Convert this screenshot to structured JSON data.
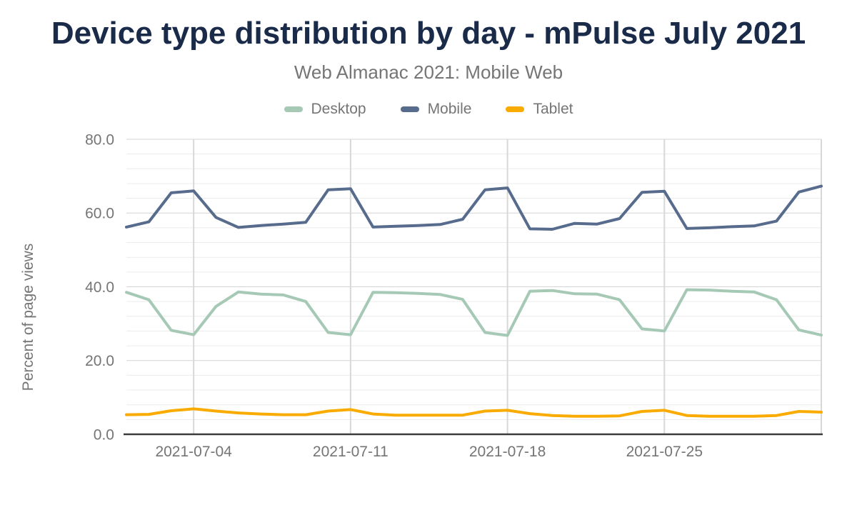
{
  "chart_data": {
    "type": "line",
    "title": "Device type distribution by day - mPulse July 2021",
    "subtitle": "Web Almanac 2021: Mobile Web",
    "ylabel": "Percent of page views",
    "xlabel": "",
    "ylim": [
      0,
      80
    ],
    "y_major_step": 20,
    "y_minor_step": 4,
    "grid": true,
    "legend_position": "top",
    "y_ticks": [
      {
        "value": 80,
        "label": "80.0"
      },
      {
        "value": 60,
        "label": "60.0"
      },
      {
        "value": 40,
        "label": "40.0"
      },
      {
        "value": 20,
        "label": "20.0"
      },
      {
        "value": 0,
        "label": "0.0"
      }
    ],
    "x": [
      "2021-07-01",
      "2021-07-02",
      "2021-07-03",
      "2021-07-04",
      "2021-07-05",
      "2021-07-06",
      "2021-07-07",
      "2021-07-08",
      "2021-07-09",
      "2021-07-10",
      "2021-07-11",
      "2021-07-12",
      "2021-07-13",
      "2021-07-14",
      "2021-07-15",
      "2021-07-16",
      "2021-07-17",
      "2021-07-18",
      "2021-07-19",
      "2021-07-20",
      "2021-07-21",
      "2021-07-22",
      "2021-07-23",
      "2021-07-24",
      "2021-07-25",
      "2021-07-26",
      "2021-07-27",
      "2021-07-28",
      "2021-07-29",
      "2021-07-30",
      "2021-07-31",
      "2021-08-01"
    ],
    "x_ticks": [
      {
        "index": 3,
        "label": "2021-07-04"
      },
      {
        "index": 10,
        "label": "2021-07-11"
      },
      {
        "index": 17,
        "label": "2021-07-18"
      },
      {
        "index": 24,
        "label": "2021-07-25"
      }
    ],
    "x_gridline_indices": [
      3,
      10,
      17,
      24,
      31
    ],
    "series": [
      {
        "name": "Desktop",
        "color": "#a5c9b5",
        "values": [
          38.5,
          36.5,
          28.2,
          27.0,
          34.7,
          38.6,
          38.0,
          37.8,
          36.0,
          27.6,
          27.0,
          38.5,
          38.4,
          38.2,
          37.9,
          36.6,
          27.6,
          26.8,
          38.8,
          39.0,
          38.1,
          38.0,
          36.5,
          28.6,
          28.0,
          39.2,
          39.1,
          38.8,
          38.6,
          36.5,
          28.3,
          26.9
        ]
      },
      {
        "name": "Mobile",
        "color": "#576b8d",
        "values": [
          56.2,
          57.6,
          65.5,
          66.0,
          58.8,
          56.1,
          56.6,
          57.0,
          57.5,
          66.3,
          66.6,
          56.2,
          56.4,
          56.6,
          56.9,
          58.3,
          66.3,
          66.8,
          55.7,
          55.6,
          57.2,
          57.0,
          58.5,
          65.6,
          65.9,
          55.8,
          56.0,
          56.3,
          56.5,
          57.8,
          65.7,
          67.3
        ]
      },
      {
        "name": "Tablet",
        "color": "#f9ab00",
        "values": [
          5.3,
          5.4,
          6.4,
          6.9,
          6.3,
          5.8,
          5.5,
          5.3,
          5.3,
          6.3,
          6.7,
          5.5,
          5.2,
          5.2,
          5.2,
          5.2,
          6.3,
          6.5,
          5.6,
          5.1,
          4.9,
          4.9,
          5.0,
          6.2,
          6.5,
          5.1,
          4.9,
          4.9,
          4.9,
          5.1,
          6.2,
          6.0
        ]
      }
    ]
  },
  "theme": {
    "title_color": "#1a2b4a",
    "subtitle_color": "#757575",
    "axis_label_color": "#757575",
    "grid_minor": "#ececec",
    "grid_major": "#d4d4d4",
    "grid_vertical": "#d8d8d8",
    "axis_line": "#3c3c3c",
    "page_bg": "#ffffff"
  }
}
